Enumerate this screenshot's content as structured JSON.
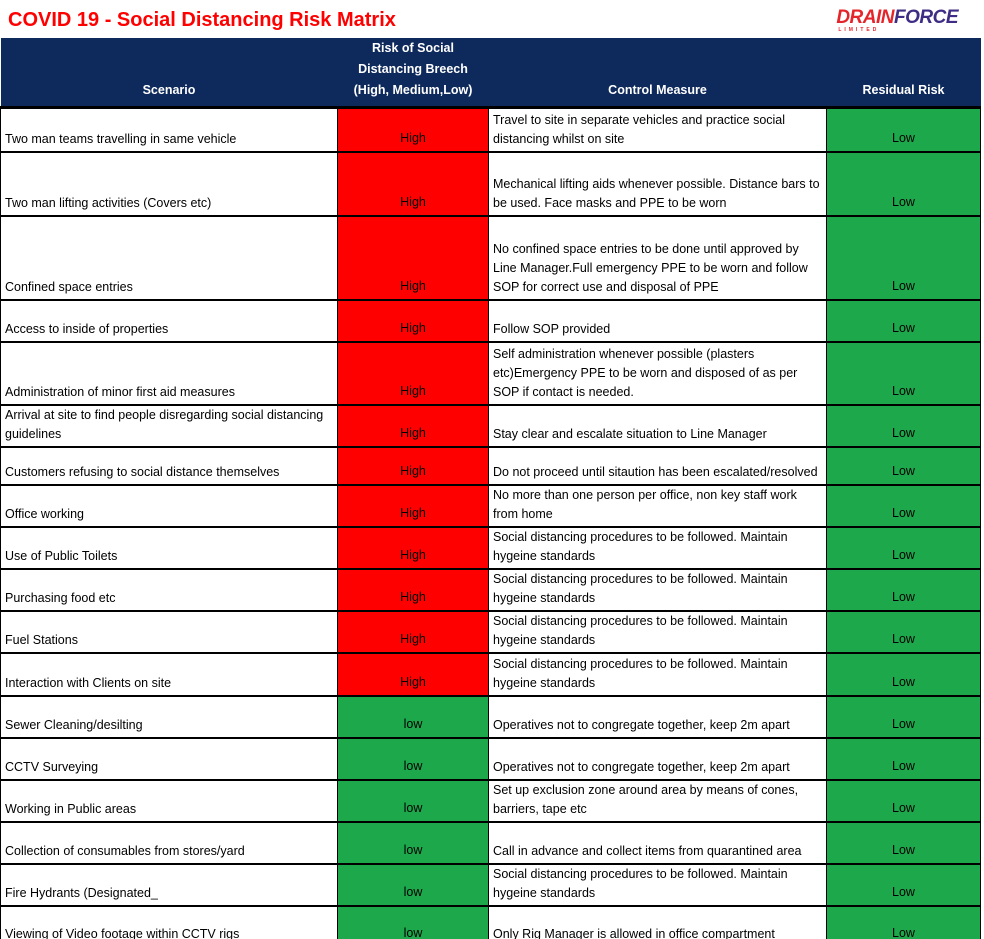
{
  "title": "COVID 19 - Social Distancing Risk Matrix",
  "logo": {
    "drain": "DRAIN",
    "force": "FORCE",
    "limited": "LIMITED"
  },
  "colors": {
    "title_red": "#FF0000",
    "header_bg": "#0E2A5C",
    "high_bg": "#FF0000",
    "low_bg": "#1EA84C",
    "logo_red": "#E4252B",
    "logo_purple": "#3F2D85"
  },
  "table": {
    "headers": [
      "Scenario",
      "Risk of Social Distancing Breech (High, Medium,Low)",
      "Control Measure",
      "Residual Risk"
    ],
    "rows": [
      {
        "scenario": "Two man teams travelling in same vehicle",
        "risk": "High",
        "control": "Travel to site in separate vehicles and practice social distancing whilst on site",
        "residual": "Low"
      },
      {
        "scenario": "Two man lifting activities (Covers etc)",
        "risk": "High",
        "control": "Mechanical lifting aids whenever possible. Distance bars to be used. Face masks and PPE to be worn",
        "residual": "Low"
      },
      {
        "scenario": "Confined space entries",
        "risk": "High",
        "control": "No confined space entries to be done until approved by Line Manager.Full emergency PPE to be worn and follow SOP for correct use and disposal of PPE",
        "residual": "Low"
      },
      {
        "scenario": "Access to inside of properties",
        "risk": "High",
        "control": "Follow SOP provided",
        "residual": "Low"
      },
      {
        "scenario": "Administration of minor first aid measures",
        "risk": "High",
        "control": "Self administration whenever possible (plasters etc)Emergency PPE to be worn and disposed of as per SOP if contact is needed.",
        "residual": "Low"
      },
      {
        "scenario": "Arrival at site to find people disregarding social distancing guidelines",
        "risk": "High",
        "control": "Stay clear and escalate situation to Line Manager",
        "residual": "Low"
      },
      {
        "scenario": "Customers refusing to social distance themselves",
        "risk": "High",
        "control": "Do not proceed until sitaution has been escalated/resolved",
        "residual": "Low"
      },
      {
        "scenario": "Office working",
        "risk": "High",
        "control": "No more than one person per office, non key staff work from home",
        "residual": "Low"
      },
      {
        "scenario": "Use of Public Toilets",
        "risk": "High",
        "control": "Social distancing procedures to be followed. Maintain hygeine standards",
        "residual": "Low"
      },
      {
        "scenario": "Purchasing food etc",
        "risk": "High",
        "control": "Social distancing procedures to be followed. Maintain hygeine standards",
        "residual": "Low"
      },
      {
        "scenario": "Fuel Stations",
        "risk": "High",
        "control": "Social distancing procedures to be followed. Maintain hygeine standards",
        "residual": "Low"
      },
      {
        "scenario": "Interaction with Clients on site",
        "risk": "High",
        "control": "Social distancing procedures to be followed. Maintain hygeine standards",
        "residual": "Low"
      },
      {
        "scenario": "Sewer Cleaning/desilting",
        "risk": "low",
        "control": "Operatives not to congregate together, keep 2m apart",
        "residual": "Low"
      },
      {
        "scenario": "CCTV Surveying",
        "risk": "low",
        "control": "Operatives not to congregate together, keep 2m apart",
        "residual": "Low"
      },
      {
        "scenario": "Working in Public areas",
        "risk": "low",
        "control": "Set up exclusion zone around area by means of cones, barriers, tape etc",
        "residual": "Low"
      },
      {
        "scenario": "Collection of consumables from stores/yard",
        "risk": "low",
        "control": "Call in advance and collect items from quarantined area",
        "residual": "Low"
      },
      {
        "scenario": "Fire Hydrants (Designated_",
        "risk": "low",
        "control": "Social distancing procedures to be followed. Maintain hygeine standards",
        "residual": "Low"
      },
      {
        "scenario": "Viewing of Video footage within CCTV rigs",
        "risk": "low",
        "control": "Only Rig Manager is allowed in office compartment",
        "residual": "Low"
      }
    ]
  }
}
